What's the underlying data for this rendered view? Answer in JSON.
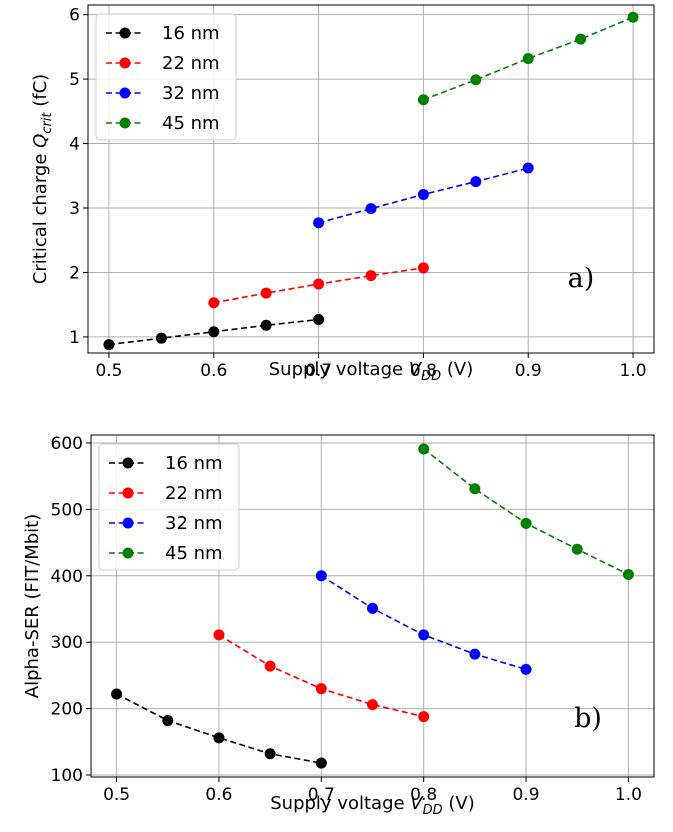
{
  "chart_data": [
    {
      "type": "line",
      "panel": "a)",
      "xlabel": "Supply voltage V_DD (V)",
      "ylabel": "Critical charge Q_crit (fC)",
      "xlim": [
        0.48,
        1.02
      ],
      "ylim": [
        0.75,
        6.15
      ],
      "xticks": [
        "0.5",
        "0.6",
        "0.7",
        "0.8",
        "0.9",
        "1.0"
      ],
      "yticks": [
        "1",
        "2",
        "3",
        "4",
        "5",
        "6"
      ],
      "grid": true,
      "legend_position": "top-left",
      "series": [
        {
          "name": "16 nm",
          "color": "#000000",
          "x": [
            0.5,
            0.55,
            0.6,
            0.65,
            0.7
          ],
          "y": [
            0.88,
            0.98,
            1.08,
            1.18,
            1.27
          ]
        },
        {
          "name": "22 nm",
          "color": "#ff0000",
          "x": [
            0.6,
            0.65,
            0.7,
            0.75,
            0.8
          ],
          "y": [
            1.53,
            1.68,
            1.82,
            1.95,
            2.07
          ]
        },
        {
          "name": "32 nm",
          "color": "#0000ff",
          "x": [
            0.7,
            0.75,
            0.8,
            0.85,
            0.9
          ],
          "y": [
            2.77,
            2.99,
            3.21,
            3.41,
            3.62
          ]
        },
        {
          "name": "45 nm",
          "color": "#008000",
          "x": [
            0.8,
            0.85,
            0.9,
            0.95,
            1.0
          ],
          "y": [
            4.68,
            4.99,
            5.32,
            5.62,
            5.96
          ]
        }
      ]
    },
    {
      "type": "line",
      "panel": "b)",
      "xlabel": "Supply voltage V_DD (V)",
      "ylabel": "Alpha-SER (FIT/Mbit)",
      "xlim": [
        0.475,
        1.025
      ],
      "ylim": [
        97,
        612
      ],
      "xticks": [
        "0.5",
        "0.6",
        "0.7",
        "0.8",
        "0.9",
        "1.0"
      ],
      "yticks": [
        "100",
        "200",
        "300",
        "400",
        "500",
        "600"
      ],
      "grid": true,
      "legend_position": "top-left",
      "series": [
        {
          "name": "16 nm",
          "color": "#000000",
          "x": [
            0.5,
            0.55,
            0.6,
            0.65,
            0.7
          ],
          "y": [
            222,
            182,
            156,
            132,
            118
          ]
        },
        {
          "name": "22 nm",
          "color": "#ff0000",
          "x": [
            0.6,
            0.65,
            0.7,
            0.75,
            0.8
          ],
          "y": [
            311,
            264,
            230,
            206,
            188
          ]
        },
        {
          "name": "32 nm",
          "color": "#0000ff",
          "x": [
            0.7,
            0.75,
            0.8,
            0.85,
            0.9
          ],
          "y": [
            400,
            351,
            311,
            282,
            259
          ]
        },
        {
          "name": "45 nm",
          "color": "#008000",
          "x": [
            0.8,
            0.85,
            0.9,
            0.95,
            1.0
          ],
          "y": [
            591,
            531,
            479,
            440,
            402
          ]
        }
      ]
    }
  ]
}
